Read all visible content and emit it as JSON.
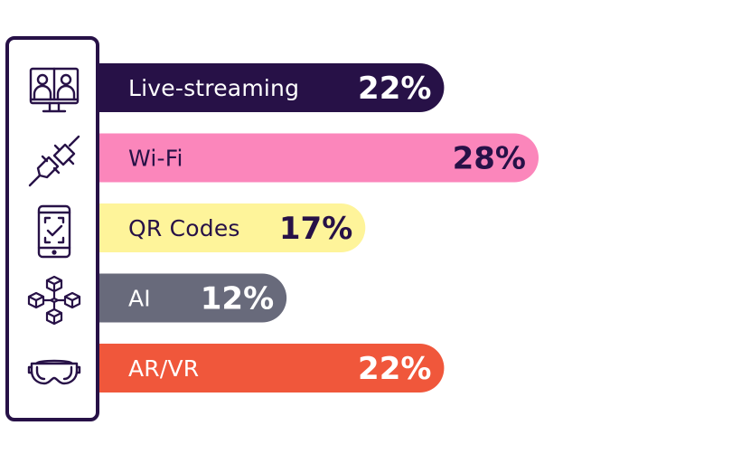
{
  "chart_data": {
    "type": "bar",
    "orientation": "horizontal",
    "categories": [
      "Live-streaming",
      "Wi-Fi",
      "QR Codes",
      "AI",
      "AR/VR"
    ],
    "values": [
      22,
      28,
      17,
      12,
      22
    ],
    "value_labels": [
      "22%",
      "28%",
      "17%",
      "12%",
      "22%"
    ],
    "colors": [
      "#271147",
      "#fb86bb",
      "#fef49a",
      "#686a7b",
      "#f0573b"
    ],
    "text_colors": [
      "#ffffff",
      "#271147",
      "#271147",
      "#ffffff",
      "#ffffff"
    ],
    "icons": [
      "video-call-monitor-icon",
      "plug-icon",
      "phone-qr-icon",
      "blockchain-cubes-icon",
      "vr-goggles-icon"
    ],
    "title": "",
    "xlabel": "",
    "ylabel": "",
    "xlim": [
      0,
      28
    ],
    "grid": false,
    "legend": "none"
  }
}
